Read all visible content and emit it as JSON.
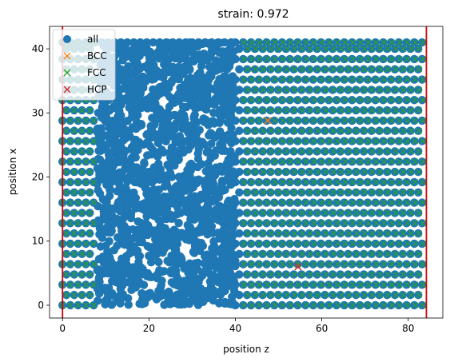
{
  "chart_data": {
    "type": "scatter",
    "title": "strain: 0.972",
    "xlabel": "position z",
    "ylabel": "position x",
    "xlim": [
      -3,
      88
    ],
    "ylim": [
      -2,
      43.5
    ],
    "xticks": [
      0,
      20,
      40,
      60,
      80
    ],
    "yticks": [
      0,
      10,
      20,
      30,
      40
    ],
    "grid": false,
    "legend_position": "top-left",
    "colors": {
      "all": "#1f77b4",
      "BCC": "#ff7f0e",
      "FCC": "#2ca02c",
      "HCP": "#d62728",
      "boundary": "#cc0000"
    },
    "series": [
      {
        "name": "all",
        "marker": "circle",
        "description_of_distribution": "dense atoms over whole domain z 0–84, x 0–41; disordered amorphous block z≈8–40, crystalline rows elsewhere",
        "row_y": [
          0,
          1.6,
          3.2,
          4.8,
          6.4,
          8.0,
          9.6,
          11.2,
          12.8,
          14.4,
          16.0,
          17.6,
          19.2,
          20.8,
          22.4,
          24.0,
          25.6,
          27.2,
          28.8,
          30.4,
          32.0,
          33.6,
          35.2,
          36.8,
          38.4,
          40.0,
          41.0
        ],
        "ordered_z_ranges": [
          [
            0,
            8
          ],
          [
            40,
            84
          ]
        ],
        "amorphous_z_range": [
          8,
          40
        ]
      },
      {
        "name": "BCC",
        "marker": "x",
        "points": [
          [
            47.5,
            28.8
          ],
          [
            54.5,
            6.0
          ]
        ]
      },
      {
        "name": "FCC",
        "marker": "x",
        "description_of_distribution": "same lattice rows as ordered 'all' atoms",
        "ordered_z_ranges": [
          [
            0,
            8
          ],
          [
            42,
            84
          ]
        ]
      },
      {
        "name": "HCP",
        "marker": "x",
        "points": [
          [
            54.5,
            6.0
          ]
        ]
      }
    ],
    "vertical_lines": [
      0,
      84.2
    ]
  }
}
